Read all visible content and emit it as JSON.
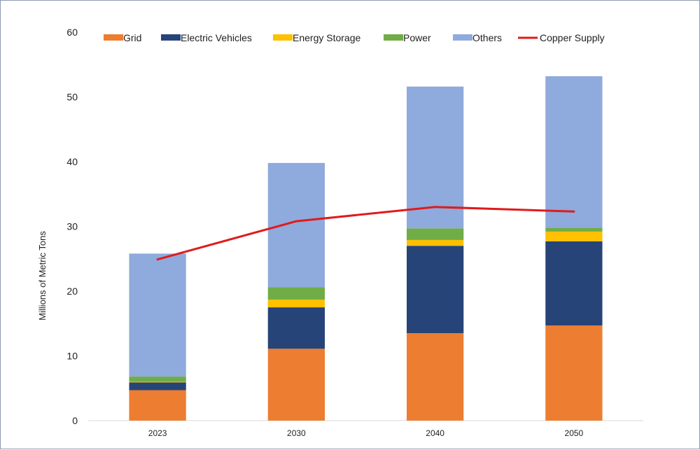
{
  "chart_data": {
    "type": "bar",
    "stacked": true,
    "categories": [
      "2023",
      "2030",
      "2040",
      "2050"
    ],
    "series": [
      {
        "name": "Grid",
        "color": "#ed7d31",
        "values": [
          4.7,
          11.1,
          13.5,
          14.7
        ]
      },
      {
        "name": "Electric Vehicles",
        "color": "#264478",
        "values": [
          1.2,
          6.4,
          13.5,
          13.0
        ]
      },
      {
        "name": "Energy Storage",
        "color": "#ffc000",
        "values": [
          0.1,
          1.2,
          0.9,
          1.5
        ]
      },
      {
        "name": "Power",
        "color": "#70ad47",
        "values": [
          0.8,
          1.9,
          1.8,
          0.6
        ]
      },
      {
        "name": "Others",
        "color": "#8faadc",
        "values": [
          19.0,
          19.2,
          21.9,
          23.4
        ]
      }
    ],
    "line": {
      "name": "Copper Supply",
      "color": "#e01b1b",
      "values": [
        24.9,
        30.8,
        33.0,
        32.3
      ]
    },
    "ylabel": "Millions of Metric Tons",
    "xlabel": "",
    "title": "",
    "ylim": [
      0,
      60
    ],
    "yticks": [
      0,
      10,
      20,
      30,
      40,
      50,
      60
    ],
    "legend_position": "top",
    "grid": false
  }
}
